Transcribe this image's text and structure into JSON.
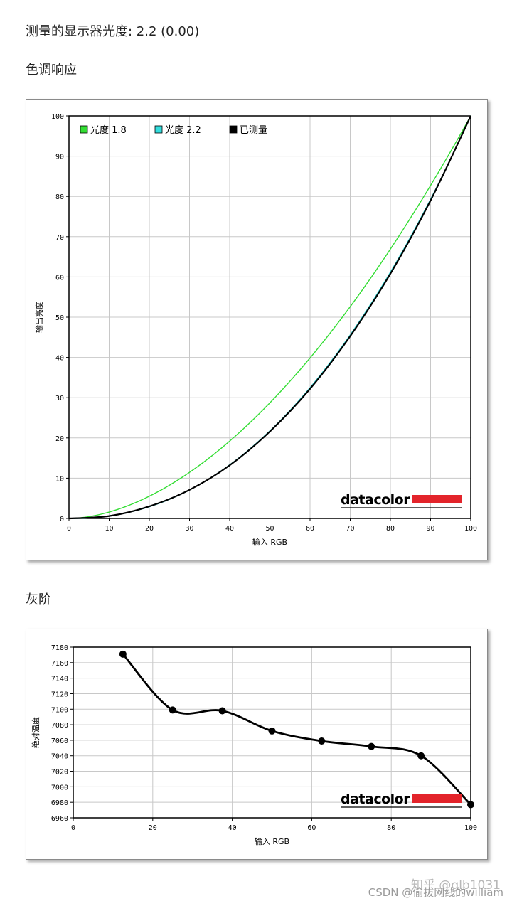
{
  "header": {
    "measured_gamma": "测量的显示器光度: 2.2 (0.00)",
    "section_tone": "色调响应",
    "section_gray": "灰阶"
  },
  "watermarks": {
    "zhihu": "知乎 @glb1031",
    "csdn": "CSDN @偷拔网线的william"
  },
  "brand": {
    "logo_text": "datacolor",
    "logo_bar_color": "#e3242b"
  },
  "chart_data": [
    {
      "type": "line",
      "title": "",
      "xlabel": "输入 RGB",
      "ylabel": "输出亮度",
      "xlim": [
        0,
        100
      ],
      "ylim": [
        0,
        100
      ],
      "xticks": [
        0,
        10,
        20,
        30,
        40,
        50,
        60,
        70,
        80,
        90,
        100
      ],
      "yticks": [
        0,
        10,
        20,
        30,
        40,
        50,
        60,
        70,
        80,
        90,
        100
      ],
      "grid": true,
      "legend_position": "top-left",
      "series": [
        {
          "name": "光度 1.8",
          "color": "#33dd33",
          "gamma": 1.8,
          "x": [
            0,
            10,
            20,
            30,
            40,
            50,
            60,
            70,
            80,
            90,
            100
          ],
          "y": [
            0,
            1.6,
            5.5,
            11.5,
            19.2,
            28.7,
            39.9,
            52.6,
            66.9,
            82.7,
            100
          ]
        },
        {
          "name": "光度 2.2",
          "color": "#33dddd",
          "gamma": 2.2,
          "x": [
            0,
            10,
            20,
            30,
            40,
            50,
            60,
            70,
            80,
            90,
            100
          ],
          "y": [
            0,
            0.6,
            2.9,
            7.1,
            13.3,
            21.8,
            32.5,
            45.6,
            61.2,
            79.3,
            100
          ]
        },
        {
          "name": "已测量",
          "color": "#000000",
          "x": [
            0,
            10,
            20,
            30,
            40,
            50,
            60,
            70,
            80,
            90,
            100
          ],
          "y": [
            0,
            0.6,
            3.0,
            7.1,
            13.2,
            21.6,
            32.2,
            45.3,
            60.8,
            79.0,
            100
          ]
        }
      ]
    },
    {
      "type": "line",
      "title": "",
      "xlabel": "输入 RGB",
      "ylabel": "绝对温度",
      "xlim": [
        0,
        100
      ],
      "ylim": [
        6960,
        7180
      ],
      "xticks": [
        0,
        20,
        40,
        60,
        80,
        100
      ],
      "yticks": [
        6960,
        6980,
        7000,
        7020,
        7040,
        7060,
        7080,
        7100,
        7120,
        7140,
        7160,
        7180
      ],
      "grid": true,
      "series": [
        {
          "name": "",
          "color": "#000000",
          "x": [
            12.5,
            25,
            37.5,
            50,
            62.5,
            75,
            87.5,
            100
          ],
          "y": [
            7171,
            7099,
            7098,
            7072,
            7059,
            7052,
            7040,
            6977
          ]
        }
      ]
    }
  ]
}
